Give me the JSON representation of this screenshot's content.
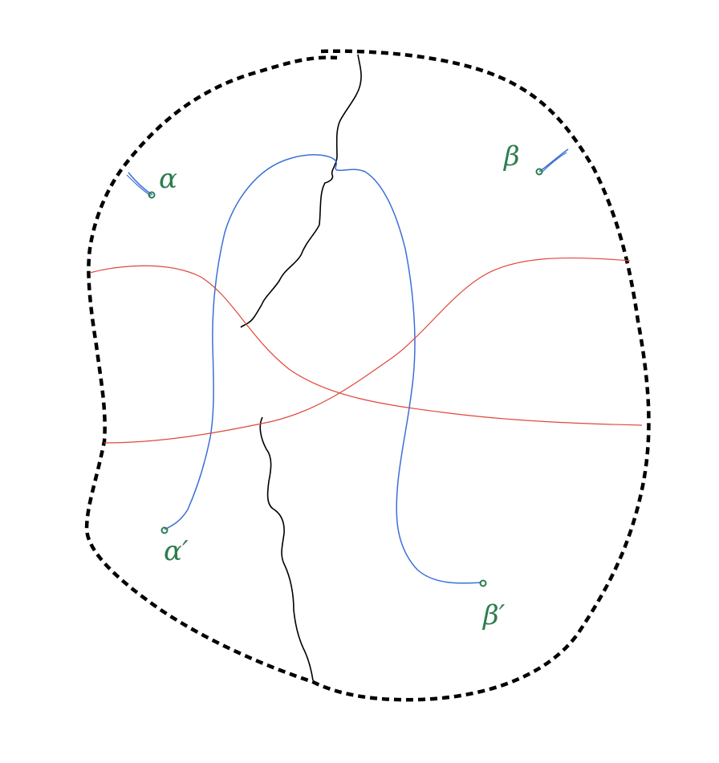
{
  "diagram": {
    "labels": {
      "alpha": "α",
      "beta": "β",
      "alpha_prime": "α′",
      "beta_prime": "β′"
    },
    "colors": {
      "boundary": "#000000",
      "black_cut": "#000000",
      "blue_path": "#3b6fd8",
      "red_curve": "#e0473a",
      "point_marker": "#2e7d4f"
    }
  }
}
